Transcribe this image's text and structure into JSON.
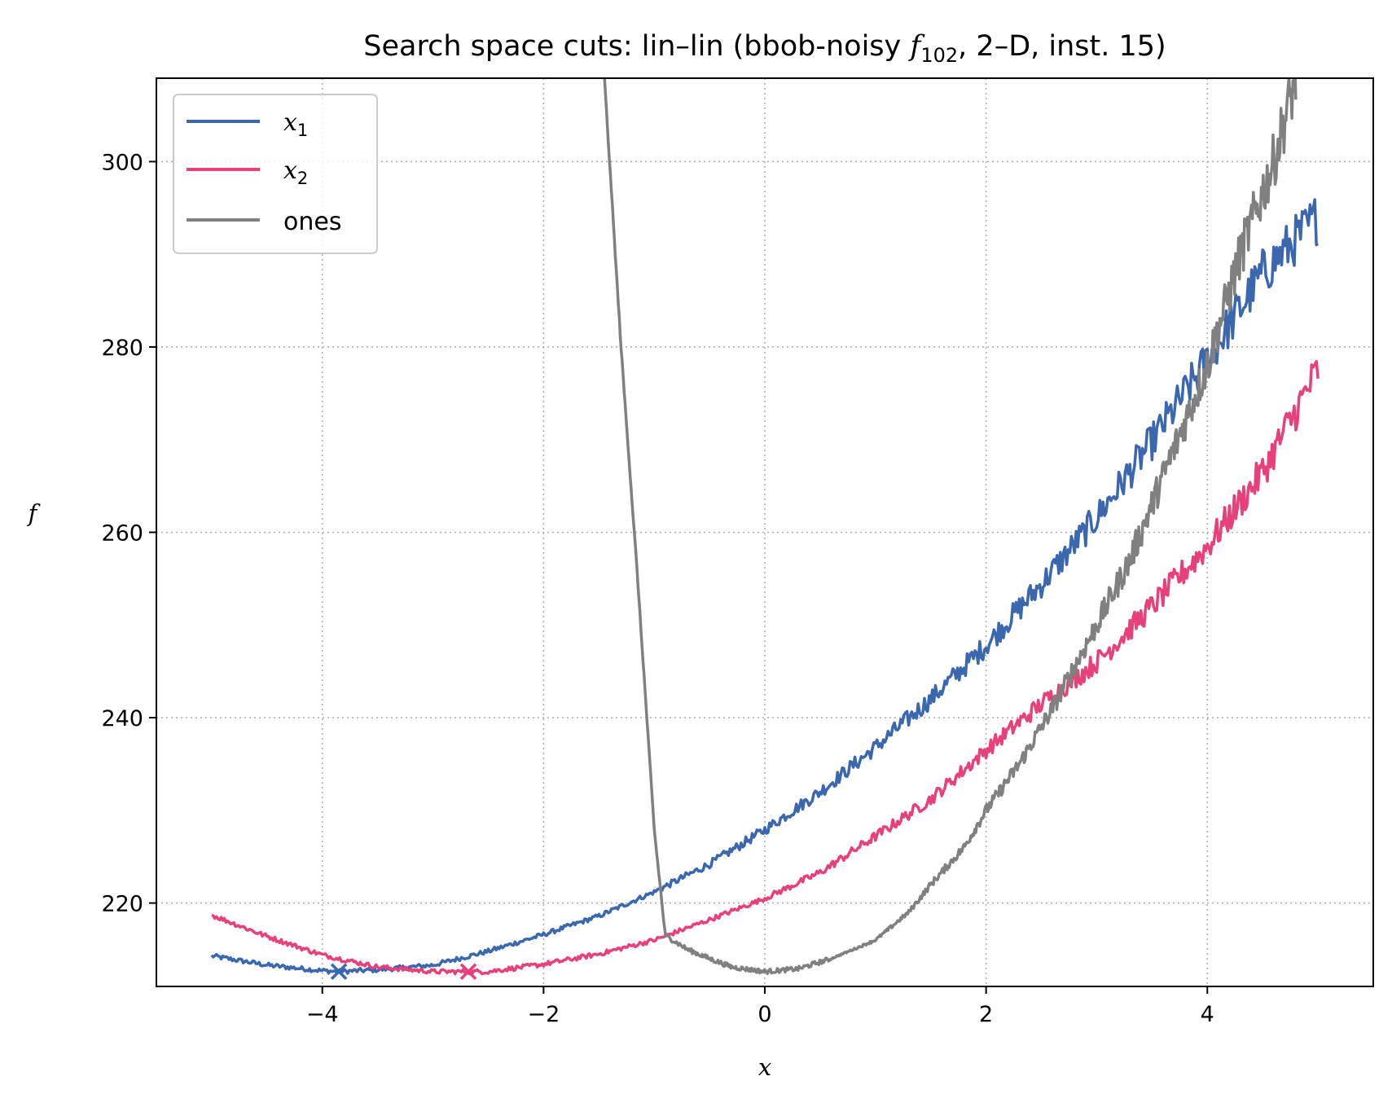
{
  "chart_data": {
    "type": "line",
    "title": {
      "prefix": "Search space cuts: lin–lin (bbob-noisy ",
      "func": "f",
      "func_sub": "102",
      "suffix": ", 2–D, inst. 15)"
    },
    "xlabel": "x",
    "ylabel": "f",
    "xlim": [
      -5.5,
      5.5
    ],
    "ylim": [
      211,
      309
    ],
    "xticks": [
      -4,
      -2,
      0,
      2,
      4
    ],
    "xtick_labels": [
      "−4",
      "−2",
      "0",
      "2",
      "4"
    ],
    "yticks": [
      220,
      240,
      260,
      280,
      300
    ],
    "ytick_labels": [
      "220",
      "240",
      "260",
      "280",
      "300"
    ],
    "grid": true,
    "legend_position": "top-left",
    "series": [
      {
        "name": "x",
        "name_sub": "1",
        "color": "#3a67ae",
        "x_range": [
          -5.0,
          5.0
        ],
        "minimum_marker": {
          "x": -3.85,
          "y": 212.6
        },
        "points": [
          [
            -5.0,
            214.3
          ],
          [
            -4.5,
            213.3
          ],
          [
            -4.0,
            212.7
          ],
          [
            -3.85,
            212.6
          ],
          [
            -3.5,
            212.8
          ],
          [
            -3.0,
            213.3
          ],
          [
            -2.5,
            214.8
          ],
          [
            -2.0,
            216.6
          ],
          [
            -1.5,
            218.6
          ],
          [
            -1.0,
            221.2
          ],
          [
            -0.5,
            224.2
          ],
          [
            0.0,
            227.9
          ],
          [
            0.5,
            232.0
          ],
          [
            1.0,
            236.8
          ],
          [
            1.5,
            242.0
          ],
          [
            2.0,
            247.8
          ],
          [
            2.5,
            254.4
          ],
          [
            3.0,
            261.6
          ],
          [
            3.5,
            269.8
          ],
          [
            4.0,
            278.6
          ],
          [
            4.5,
            288.0
          ],
          [
            5.0,
            294.0
          ]
        ],
        "noise_from_x": -1.0
      },
      {
        "name": "x",
        "name_sub": "2",
        "color": "#e8417a",
        "x_range": [
          -5.0,
          5.0
        ],
        "minimum_marker": {
          "x": -2.68,
          "y": 212.6
        },
        "points": [
          [
            -5.0,
            218.7
          ],
          [
            -4.5,
            216.4
          ],
          [
            -4.0,
            214.4
          ],
          [
            -3.5,
            213.1
          ],
          [
            -3.0,
            212.6
          ],
          [
            -2.68,
            212.6
          ],
          [
            -2.5,
            212.6
          ],
          [
            -2.0,
            213.4
          ],
          [
            -1.5,
            214.5
          ],
          [
            -1.0,
            216.0
          ],
          [
            -0.5,
            218.2
          ],
          [
            0.0,
            220.5
          ],
          [
            0.5,
            223.3
          ],
          [
            1.0,
            227.2
          ],
          [
            1.5,
            231.2
          ],
          [
            2.0,
            236.5
          ],
          [
            2.5,
            241.5
          ],
          [
            3.0,
            246.0
          ],
          [
            3.5,
            252.0
          ],
          [
            4.0,
            258.5
          ],
          [
            4.5,
            266.5
          ],
          [
            5.0,
            277.5
          ]
        ],
        "noise_from_x": 0.0
      },
      {
        "name": "ones",
        "color": "#808080",
        "x_range": [
          -5.0,
          5.0
        ],
        "points": [
          [
            -1.45,
            309.0
          ],
          [
            -1.3,
            280.0
          ],
          [
            -1.15,
            255.0
          ],
          [
            -1.0,
            228.0
          ],
          [
            -0.9,
            216.5
          ],
          [
            -0.7,
            215.0
          ],
          [
            -0.5,
            214.0
          ],
          [
            -0.3,
            213.1
          ],
          [
            0.0,
            212.6
          ],
          [
            0.3,
            212.9
          ],
          [
            0.6,
            214.0
          ],
          [
            1.0,
            216.0
          ],
          [
            1.3,
            219.0
          ],
          [
            1.5,
            222.0
          ],
          [
            1.8,
            226.0
          ],
          [
            2.0,
            230.0
          ],
          [
            2.3,
            235.0
          ],
          [
            2.6,
            241.0
          ],
          [
            3.0,
            250.0
          ],
          [
            3.3,
            257.0
          ],
          [
            3.6,
            266.0
          ],
          [
            4.0,
            278.0
          ],
          [
            4.3,
            290.0
          ],
          [
            4.6,
            300.0
          ],
          [
            4.8,
            309.0
          ]
        ],
        "noise_from_x": 0.6
      }
    ]
  }
}
